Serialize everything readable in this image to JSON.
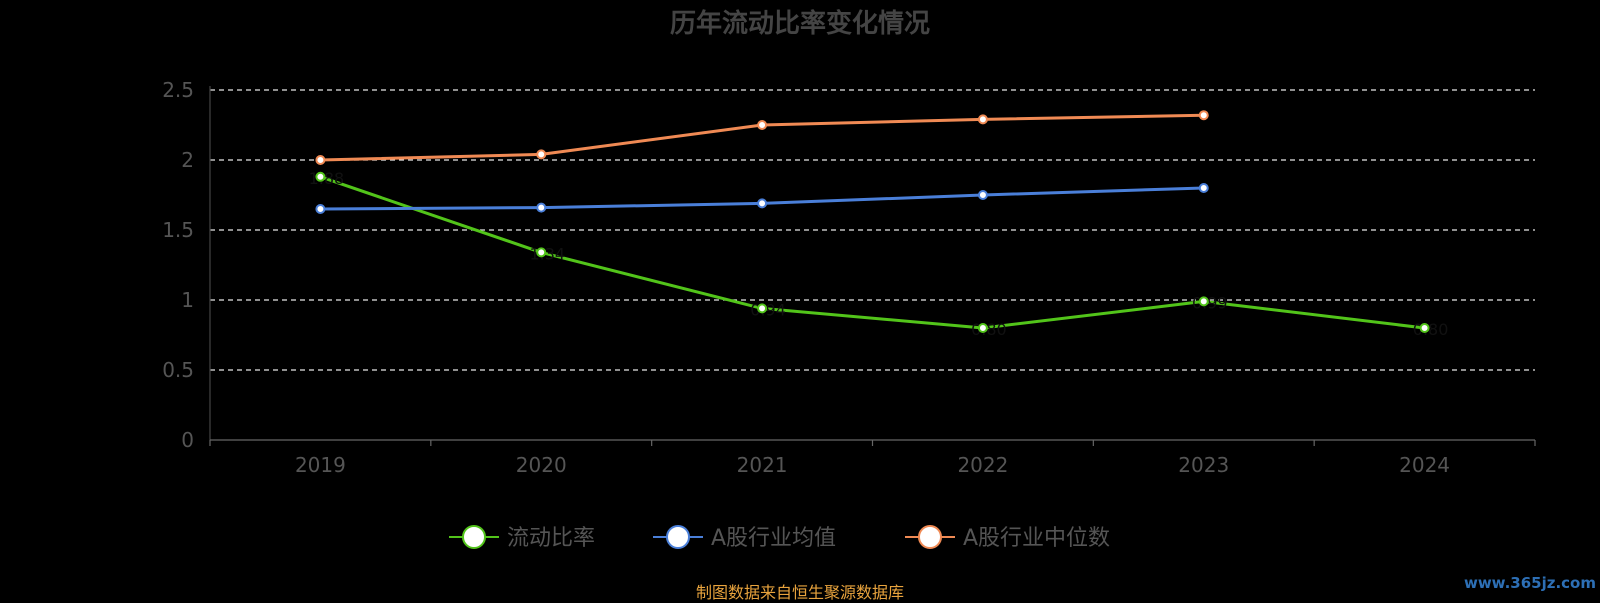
{
  "chart_data": {
    "type": "line",
    "title": "历年流动比率变化情况",
    "categories": [
      "2019",
      "2020",
      "2021",
      "2022",
      "2023",
      "2024"
    ],
    "ylim": [
      0,
      2.5
    ],
    "yticks": [
      "0",
      "0.5",
      "1",
      "1.5",
      "2",
      "2.5"
    ],
    "grid": true,
    "legend_position": "bottom",
    "series": [
      {
        "name": "流动比率",
        "values": [
          1.88,
          1.34,
          0.94,
          0.8,
          0.99,
          0.8
        ],
        "color": "#52c41a",
        "data_labels": true
      },
      {
        "name": "A股行业均值",
        "values": [
          1.65,
          1.66,
          1.69,
          1.75,
          1.8,
          null
        ],
        "color": "#4a7fd9",
        "data_labels": false
      },
      {
        "name": "A股行业中位数",
        "values": [
          2.0,
          2.04,
          2.25,
          2.29,
          2.32,
          null
        ],
        "color": "#f08a54",
        "data_labels": false
      }
    ]
  },
  "footer": {
    "source": "制图数据来自恒生聚源数据库",
    "watermark": "www.365jz.com"
  }
}
